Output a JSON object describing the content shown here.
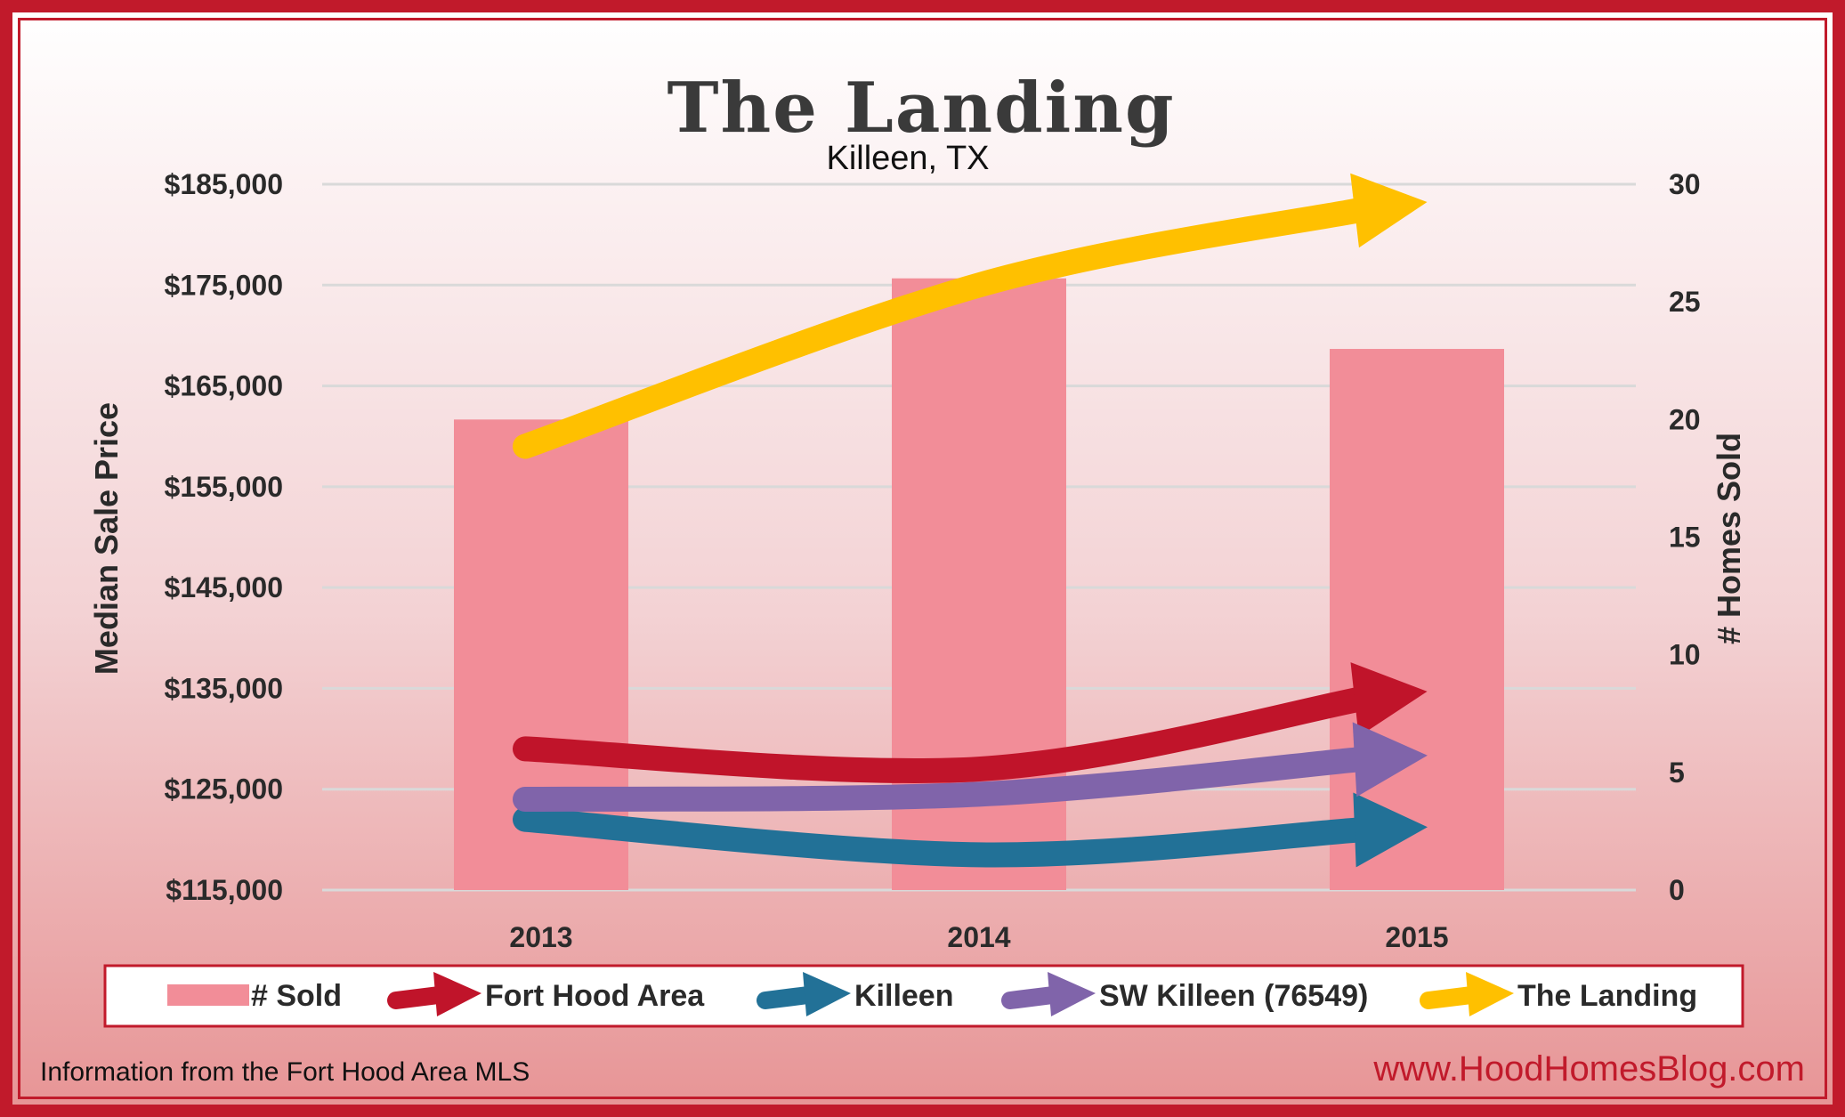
{
  "chart_data": {
    "type": "bar",
    "title": "The Landing",
    "subtitle": "Killeen, TX",
    "categories": [
      "2013",
      "2014",
      "2015"
    ],
    "left_axis": {
      "label": "Median Sale Price",
      "range": [
        115000,
        185000
      ],
      "ticks": [
        "$115,000",
        "$125,000",
        "$135,000",
        "$145,000",
        "$155,000",
        "$165,000",
        "$175,000",
        "$185,000"
      ]
    },
    "right_axis": {
      "label": "# Homes Sold",
      "range": [
        0,
        30
      ],
      "ticks": [
        "0",
        "5",
        "10",
        "15",
        "20",
        "25",
        "30"
      ]
    },
    "grid": true,
    "bars": {
      "name": "# Sold",
      "color": "#f28d98",
      "values": [
        20,
        26,
        23
      ]
    },
    "series": [
      {
        "name": "Fort Hood Area",
        "color": "#c0142a",
        "values": [
          129000,
          127000,
          134000
        ]
      },
      {
        "name": "Killeen",
        "color": "#227197",
        "values": [
          122000,
          118500,
          121000
        ]
      },
      {
        "name": "SW Killeen (76549)",
        "color": "#8064aa",
        "values": [
          124000,
          124500,
          128000
        ]
      },
      {
        "name": "The Landing",
        "color": "#ffc000",
        "values": [
          159000,
          175000,
          182500
        ]
      }
    ],
    "legend_position": "bottom"
  },
  "footer": {
    "source": "Information from the Fort Hood Area MLS",
    "site": "www.HoodHomesBlog.com"
  }
}
